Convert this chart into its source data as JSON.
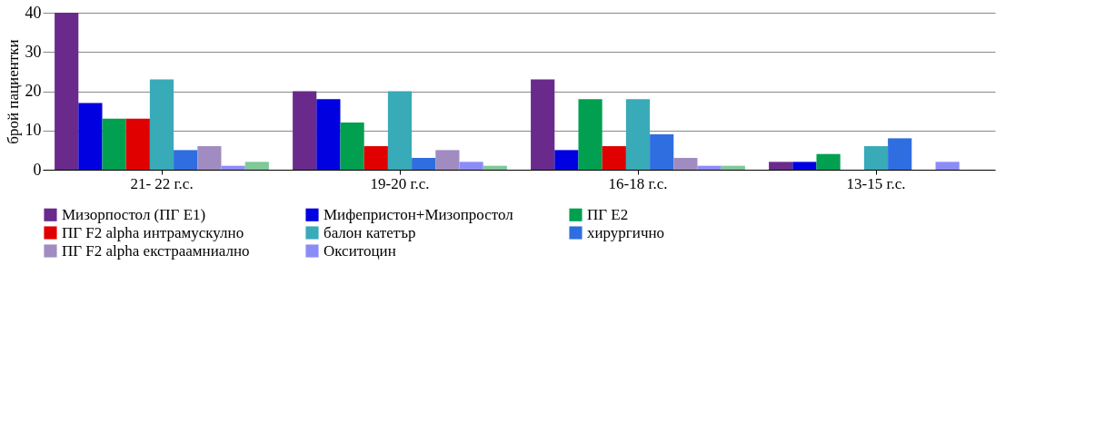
{
  "chart_data": {
    "type": "bar",
    "ylabel": "брой пациентки",
    "categories": [
      "21- 22 г.с.",
      "19-20 г.с.",
      "16-18 г.с.",
      "13-15 г.с."
    ],
    "series": [
      {
        "name": "Мизорпостол (ПГ Е1)",
        "color": "#6a2a8c",
        "values": [
          40,
          20,
          23,
          2
        ]
      },
      {
        "name": "Мифепристон+Мизопростол",
        "color": "#0000e0",
        "values": [
          17,
          18,
          5,
          2
        ]
      },
      {
        "name": "ПГ Е2",
        "color": "#00a050",
        "values": [
          13,
          12,
          18,
          4
        ]
      },
      {
        "name": "ПГ F2 alpha интрамускулно",
        "color": "#e00000",
        "values": [
          13,
          6,
          6,
          0
        ]
      },
      {
        "name": "балон катетър",
        "color": "#38aab8",
        "values": [
          23,
          20,
          18,
          6
        ]
      },
      {
        "name": "хирургично",
        "color": "#2f6ee0",
        "values": [
          5,
          3,
          9,
          8
        ]
      },
      {
        "name": "ПГ F2 alpha екстраамниално",
        "color": "#a08cc0",
        "values": [
          6,
          5,
          3,
          0
        ]
      },
      {
        "name": "Окситоцин",
        "color": "#8c8cf8",
        "values": [
          1,
          2,
          1,
          2
        ]
      },
      {
        "color": "#80c898",
        "values": [
          2,
          1,
          1,
          0
        ]
      }
    ],
    "ylim": [
      0,
      40
    ],
    "yticks": [
      0,
      10,
      20,
      30,
      40
    ],
    "grid": "y",
    "legend": "bottom"
  }
}
